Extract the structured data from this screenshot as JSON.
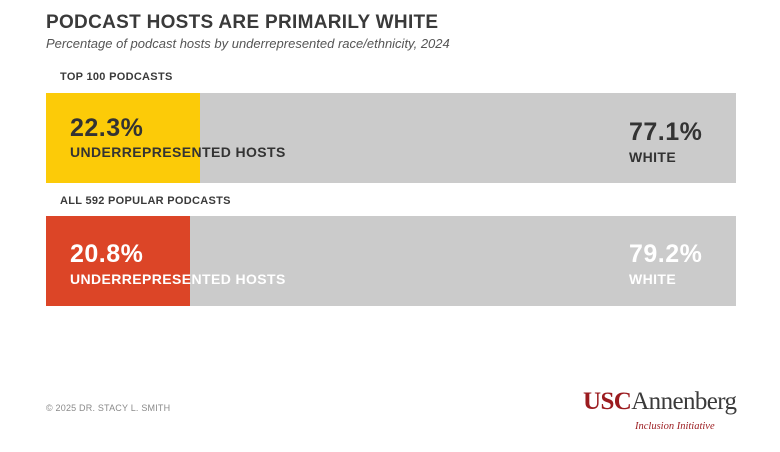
{
  "chart_data": {
    "type": "bar",
    "orientation": "horizontal-stacked",
    "title": "PODCAST HOSTS ARE PRIMARILY WHITE",
    "subtitle": "Percentage of podcast hosts by underrepresented race/ethnicity, 2024",
    "categories": [
      "TOP 100 PODCASTS",
      "ALL 592 POPULAR PODCASTS"
    ],
    "series": [
      {
        "name": "UNDERREPRESENTED HOSTS",
        "values": [
          22.3,
          20.8
        ],
        "labels": [
          "22.3%",
          "20.8%"
        ],
        "colors": [
          "#fccb08",
          "#dc4527"
        ]
      },
      {
        "name": "WHITE",
        "values": [
          77.1,
          79.2
        ],
        "labels": [
          "77.1%",
          "79.2%"
        ],
        "colors": [
          "#cbcbcb",
          "#cbcbcb"
        ]
      }
    ],
    "text_colors": {
      "row1_under": "#333333",
      "row1_white": "#333333",
      "row2_under": "#ffffff",
      "row2_white": "#ffffff"
    }
  },
  "footer": {
    "copyright": "© 2025 DR. STACY L. SMITH"
  },
  "logo": {
    "usc": "USC",
    "annenberg": "Annenberg",
    "subtitle": "Inclusion Initiative",
    "accent_color": "#9b1b1f"
  }
}
